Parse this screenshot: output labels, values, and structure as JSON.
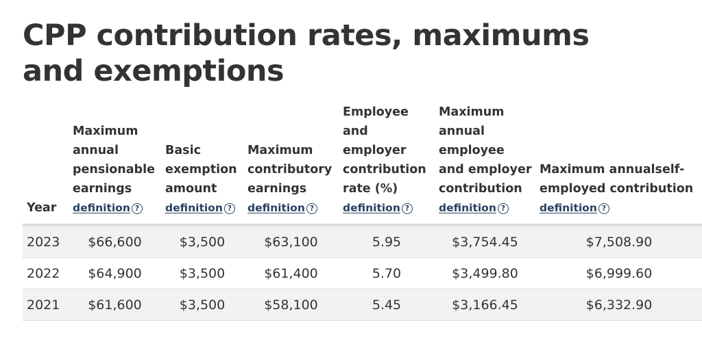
{
  "title": "CPP contribution rates, maximums and exemptions",
  "definition_label": "definition",
  "headers": [
    "Year",
    "Maximum annual pensionable earnings",
    "Basic exemption amount",
    "Maximum contributory earnings",
    "Employee and employer contribution rate (%)",
    "Maximum annual employee and employer contribution",
    "Maximum annualself-employed contribution"
  ],
  "rows": [
    [
      "2023",
      "$66,600",
      "$3,500",
      "$63,100",
      "5.95",
      "$3,754.45",
      "$7,508.90"
    ],
    [
      "2022",
      "$64,900",
      "$3,500",
      "$61,400",
      "5.70",
      "$3,499.80",
      "$6,999.60"
    ],
    [
      "2021",
      "$61,600",
      "$3,500",
      "$58,100",
      "5.45",
      "$3,166.45",
      "$6,332.90"
    ]
  ],
  "colors": {
    "text": "#333333",
    "link": "#284162",
    "stripe": "#f2f2f2",
    "header_rule": "#dcdcdc"
  },
  "icons": {
    "definition": "question-circle-icon"
  }
}
